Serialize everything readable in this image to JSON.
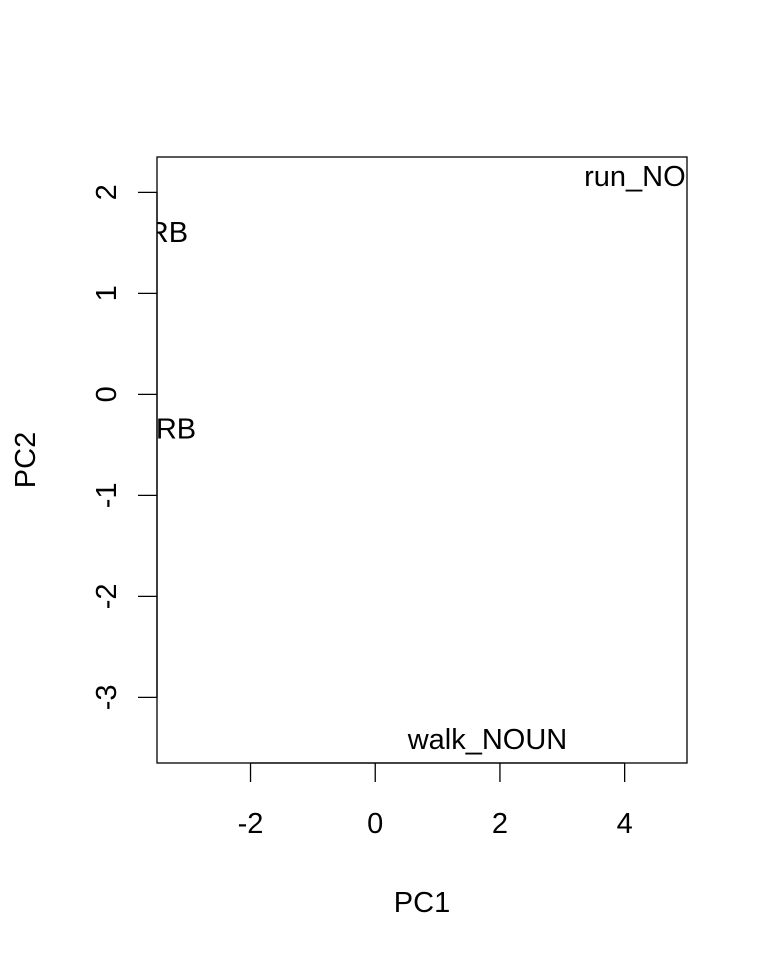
{
  "chart_data": {
    "type": "scatter",
    "xlabel": "PC1",
    "ylabel": "PC2",
    "xlim": [
      -3.5,
      5
    ],
    "ylim": [
      -3.65,
      2.35
    ],
    "x_ticks": [
      -2,
      0,
      2,
      4
    ],
    "y_ticks": [
      -3,
      -2,
      -1,
      0,
      1,
      2
    ],
    "x_tick_labels": [
      "-2",
      "0",
      "2",
      "4"
    ],
    "y_tick_labels": [
      "-3",
      "-2",
      "-1",
      "0",
      "1",
      "2"
    ],
    "grid": false,
    "points": [
      {
        "label": "run_NOUN",
        "x": 4.5,
        "y": 2.15
      },
      {
        "label": "run_VERB",
        "x": -4.1,
        "y": 1.6
      },
      {
        "label": "walk_VERB",
        "x": -4.1,
        "y": -0.35
      },
      {
        "label": "walk_NOUN",
        "x": 1.8,
        "y": -3.42
      }
    ]
  }
}
